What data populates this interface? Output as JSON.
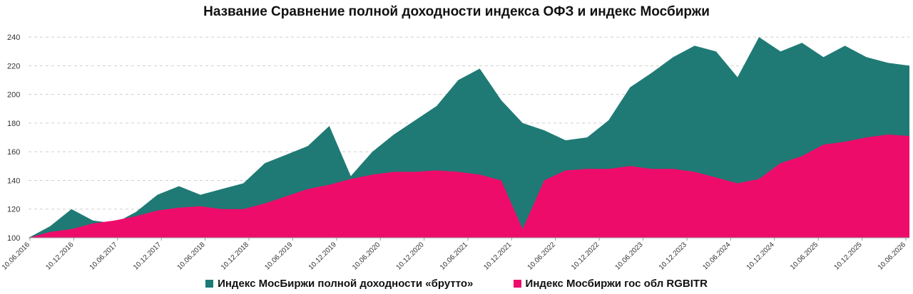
{
  "chart_data": {
    "type": "area",
    "title": "Название Сравнение полной доходности индекса ОФЗ и индекс Мосбиржи",
    "xlabel": "",
    "ylabel": "",
    "ylim": [
      100,
      245
    ],
    "y_ticks": [
      100,
      120,
      140,
      160,
      180,
      200,
      220,
      240
    ],
    "grid": true,
    "legend_position": "bottom",
    "x_tick_labels": [
      "10.06.2016",
      "10.12.2016",
      "10.06.2017",
      "10.12.2017",
      "10.06.2018",
      "10.12.2018",
      "10.06.2019",
      "10.12.2019",
      "10.06.2020",
      "10.12.2020",
      "10.06.2021",
      "10.12.2021",
      "10.06.2022",
      "10.12.2022",
      "10.06.2023",
      "10.12.2023",
      "10.06.2024",
      "10.12.2024",
      "10.06.2025",
      "10.12.2025",
      "10.06.2026"
    ],
    "x": [
      "2016-06",
      "2016-09",
      "2016-12",
      "2017-03",
      "2017-06",
      "2017-09",
      "2017-12",
      "2018-03",
      "2018-06",
      "2018-09",
      "2018-12",
      "2019-03",
      "2019-06",
      "2019-09",
      "2019-12",
      "2020-03",
      "2020-06",
      "2020-09",
      "2020-12",
      "2021-03",
      "2021-06",
      "2021-09",
      "2021-12",
      "2022-03",
      "2022-06",
      "2022-09",
      "2022-12",
      "2023-03",
      "2023-06",
      "2023-09",
      "2023-12",
      "2024-03",
      "2024-06",
      "2024-09",
      "2024-12",
      "2025-03",
      "2025-06",
      "2025-09",
      "2025-12",
      "2026-03",
      "2026-06",
      "2026-08"
    ],
    "series": [
      {
        "name": "Индекс МосБиржи полной доходности «брутто»",
        "color": "#1f7a75",
        "values": [
          100,
          108,
          120,
          112,
          110,
          118,
          130,
          136,
          130,
          134,
          138,
          152,
          158,
          164,
          178,
          143,
          160,
          172,
          182,
          192,
          210,
          218,
          196,
          180,
          175,
          168,
          170,
          182,
          205,
          215,
          226,
          234,
          230,
          212,
          240,
          230,
          236,
          226,
          234,
          226,
          222,
          220
        ]
      },
      {
        "name": "Индекс Мосбиржи гос обл RGBITR",
        "color": "#ee0c6b",
        "values": [
          100,
          104,
          106,
          110,
          112,
          115,
          119,
          121,
          122,
          120,
          120,
          124,
          129,
          134,
          137,
          141,
          144,
          146,
          146,
          147,
          146,
          144,
          140,
          106,
          140,
          147,
          148,
          148,
          150,
          148,
          148,
          146,
          142,
          138,
          141,
          152,
          157,
          165,
          167,
          170,
          172,
          171
        ]
      }
    ]
  }
}
